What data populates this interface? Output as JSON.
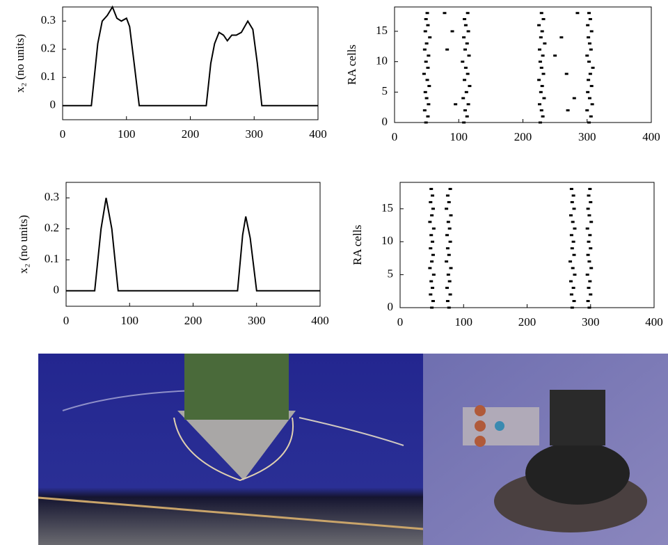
{
  "chart_data": [
    {
      "type": "line",
      "ylabel": "x₂ (no units)",
      "color": "#000000",
      "x": [
        0,
        45,
        55,
        62,
        70,
        78,
        85,
        92,
        100,
        105,
        112,
        120,
        225,
        232,
        238,
        245,
        252,
        258,
        265,
        272,
        280,
        290,
        298,
        305,
        312,
        400
      ],
      "values": [
        0,
        0,
        0.22,
        0.3,
        0.32,
        0.35,
        0.31,
        0.3,
        0.31,
        0.28,
        0.15,
        0,
        0,
        0.15,
        0.22,
        0.26,
        0.25,
        0.23,
        0.25,
        0.25,
        0.26,
        0.3,
        0.27,
        0.15,
        0,
        0
      ],
      "xlim": [
        0,
        400
      ],
      "xticks": [
        0,
        100,
        200,
        300,
        400
      ],
      "ylim": [
        -0.05,
        0.35
      ],
      "yticks": [
        0,
        0.1,
        0.2,
        0.3
      ]
    },
    {
      "type": "scatter",
      "ylabel": "RA cells",
      "color": "#000000",
      "x": [
        49,
        108,
        227,
        303,
        52,
        113,
        231,
        306,
        47,
        110,
        229,
        300,
        53,
        115,
        226,
        308,
        50,
        107,
        233,
        304,
        48,
        112,
        228,
        301,
        54,
        117,
        230,
        307,
        51,
        109,
        225,
        302,
        46,
        114,
        232,
        305,
        52,
        111,
        229,
        309,
        49,
        106,
        227,
        303,
        53,
        116,
        231,
        300,
        47,
        110,
        226,
        306,
        50,
        113,
        234,
        304,
        55,
        108,
        228,
        302,
        48,
        115,
        230,
        307,
        52,
        111,
        225,
        301,
        49,
        109,
        232,
        305,
        51,
        114,
        229,
        303,
        78,
        82,
        95,
        90,
        250,
        260,
        270,
        280,
        285,
        268
      ],
      "values": [
        0,
        0,
        0,
        0,
        1,
        1,
        1,
        1,
        2,
        2,
        2,
        2,
        3,
        3,
        3,
        3,
        4,
        4,
        4,
        4,
        5,
        5,
        5,
        5,
        6,
        6,
        6,
        6,
        7,
        7,
        7,
        7,
        8,
        8,
        8,
        8,
        9,
        9,
        9,
        9,
        10,
        10,
        10,
        10,
        11,
        11,
        11,
        11,
        12,
        12,
        12,
        12,
        13,
        13,
        13,
        13,
        14,
        14,
        14,
        14,
        15,
        15,
        15,
        15,
        16,
        16,
        16,
        16,
        17,
        17,
        17,
        17,
        18,
        18,
        18,
        18,
        18,
        12,
        3,
        15,
        11,
        14,
        2,
        4,
        18,
        8
      ],
      "xlim": [
        0,
        400
      ],
      "xticks": [
        0,
        100,
        200,
        300,
        400
      ],
      "ylim": [
        0,
        19
      ],
      "yticks": [
        0,
        5,
        10,
        15
      ]
    },
    {
      "type": "line",
      "ylabel": "x₂ (no units)",
      "color": "#000000",
      "x": [
        0,
        45,
        55,
        63,
        72,
        82,
        270,
        278,
        283,
        290,
        300,
        400
      ],
      "values": [
        0,
        0,
        0.2,
        0.3,
        0.2,
        0,
        0,
        0.18,
        0.24,
        0.17,
        0,
        0
      ],
      "xlim": [
        0,
        400
      ],
      "xticks": [
        0,
        100,
        200,
        300,
        400
      ],
      "ylim": [
        -0.05,
        0.35
      ],
      "yticks": [
        0,
        0.1,
        0.2,
        0.3
      ]
    },
    {
      "type": "scatter",
      "ylabel": "RA cells",
      "color": "#000000",
      "x": [
        50,
        77,
        271,
        298,
        52,
        75,
        274,
        296,
        48,
        79,
        270,
        300,
        51,
        74,
        273,
        297,
        49,
        78,
        269,
        299,
        53,
        76,
        275,
        295,
        47,
        80,
        272,
        301,
        50,
        73,
        268,
        298,
        52,
        77,
        274,
        296,
        48,
        75,
        271,
        300,
        51,
        79,
        273,
        297,
        49,
        74,
        270,
        299,
        53,
        78,
        275,
        295,
        47,
        76,
        272,
        301,
        50,
        80,
        269,
        298,
        52,
        73,
        274,
        296,
        48,
        77,
        271,
        300,
        51,
        75,
        273,
        297,
        49,
        79,
        270,
        299
      ],
      "values": [
        0,
        0,
        0,
        0,
        1,
        1,
        1,
        1,
        2,
        2,
        2,
        2,
        3,
        3,
        3,
        3,
        4,
        4,
        4,
        4,
        5,
        5,
        5,
        5,
        6,
        6,
        6,
        6,
        7,
        7,
        7,
        7,
        8,
        8,
        8,
        8,
        9,
        9,
        9,
        9,
        10,
        10,
        10,
        10,
        11,
        11,
        11,
        11,
        12,
        12,
        12,
        12,
        13,
        13,
        13,
        13,
        14,
        14,
        14,
        14,
        15,
        15,
        15,
        15,
        16,
        16,
        16,
        16,
        17,
        17,
        17,
        17,
        18,
        18,
        18,
        18
      ],
      "xlim": [
        0,
        400
      ],
      "xticks": [
        0,
        100,
        200,
        300,
        400
      ],
      "ylim": [
        0,
        19
      ],
      "yticks": [
        0,
        5,
        10,
        15
      ]
    }
  ]
}
